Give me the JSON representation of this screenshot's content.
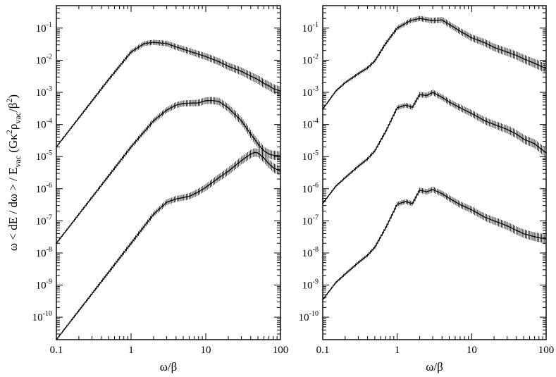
{
  "chart_data": [
    {
      "type": "line",
      "panel": "left",
      "xlabel": "ω/β",
      "ylabel": "ω < dE / dω > / E_vac (Gκ²ρ_vac/β²)",
      "xscale": "log",
      "yscale": "log",
      "xlim": [
        0.1,
        100
      ],
      "ylim": [
        2e-11,
        0.5
      ],
      "xticks": [
        0.1,
        1,
        10,
        100
      ],
      "xtick_labels": [
        "0.1",
        "1",
        "10",
        "100"
      ],
      "yticks": [
        1e-10,
        1e-09,
        1e-08,
        1e-07,
        1e-06,
        1e-05,
        0.0001,
        0.001,
        0.01,
        0.1
      ],
      "ytick_labels": [
        {
          "base": "10",
          "exp": "-10"
        },
        {
          "base": "10",
          "exp": "-9"
        },
        {
          "base": "10",
          "exp": "-8"
        },
        {
          "base": "10",
          "exp": "-7"
        },
        {
          "base": "10",
          "exp": "-6"
        },
        {
          "base": "10",
          "exp": "-5"
        },
        {
          "base": "10",
          "exp": "-4"
        },
        {
          "base": "10",
          "exp": "-3"
        },
        {
          "base": "10",
          "exp": "-2"
        },
        {
          "base": "10",
          "exp": "-1"
        }
      ],
      "series": [
        {
          "x": [
            0.1,
            0.2,
            0.5,
            1,
            1.5,
            2,
            3,
            4,
            5,
            7,
            10,
            15,
            20,
            30,
            40,
            50,
            60,
            70,
            80,
            100
          ],
          "y": [
            2e-05,
            0.00016,
            0.0025,
            0.018,
            0.033,
            0.036,
            0.033,
            0.026,
            0.022,
            0.017,
            0.013,
            0.009,
            0.0065,
            0.0045,
            0.0032,
            0.0025,
            0.0019,
            0.0016,
            0.0013,
            0.0011
          ]
        },
        {
          "x": [
            0.1,
            0.2,
            0.5,
            1,
            2,
            3,
            4,
            5,
            6,
            8,
            10,
            12,
            15,
            20,
            30,
            40,
            50,
            60,
            70,
            80,
            100
          ],
          "y": [
            2e-08,
            1.6e-07,
            2.5e-06,
            2e-05,
            0.00013,
            0.00028,
            0.0004,
            0.00045,
            0.00046,
            0.00047,
            0.00055,
            0.00056,
            0.00052,
            0.00033,
            0.00013,
            5e-05,
            2.5e-05,
            1.5e-05,
            1.2e-05,
            1.1e-05,
            1.05e-05
          ]
        },
        {
          "x": [
            0.1,
            0.2,
            0.5,
            1,
            2,
            3,
            4,
            5,
            6,
            8,
            10,
            15,
            20,
            30,
            40,
            45,
            50,
            60,
            70,
            80,
            100
          ],
          "y": [
            2e-11,
            1.6e-10,
            2.5e-09,
            2e-08,
            1.6e-07,
            3.8e-07,
            4.8e-07,
            5.3e-07,
            5.8e-07,
            8e-07,
            1.1e-06,
            2.2e-06,
            3.5e-06,
            7.5e-06,
            1.2e-05,
            1.35e-05,
            1.3e-05,
            9e-06,
            6e-06,
            4.5e-06,
            3.5e-06
          ]
        }
      ]
    },
    {
      "type": "line",
      "panel": "right",
      "xlabel": "ω/β",
      "xscale": "log",
      "yscale": "log",
      "xlim": [
        0.1,
        100
      ],
      "ylim": [
        2e-11,
        0.5
      ],
      "xticks": [
        0.1,
        1,
        10,
        100
      ],
      "xtick_labels": [
        "0.1",
        "1",
        "10",
        "100"
      ],
      "yticks": [
        1e-10,
        1e-09,
        1e-08,
        1e-07,
        1e-06,
        1e-05,
        0.0001,
        0.001,
        0.01,
        0.1
      ],
      "ytick_labels": [
        {
          "base": "10",
          "exp": "-10"
        },
        {
          "base": "10",
          "exp": "-9"
        },
        {
          "base": "10",
          "exp": "-8"
        },
        {
          "base": "10",
          "exp": "-7"
        },
        {
          "base": "10",
          "exp": "-6"
        },
        {
          "base": "10",
          "exp": "-5"
        },
        {
          "base": "10",
          "exp": "-4"
        },
        {
          "base": "10",
          "exp": "-3"
        },
        {
          "base": "10",
          "exp": "-2"
        },
        {
          "base": "10",
          "exp": "-1"
        }
      ],
      "series": [
        {
          "x": [
            0.1,
            0.15,
            0.2,
            0.3,
            0.4,
            0.5,
            0.7,
            1,
            1.5,
            2,
            3,
            4,
            5,
            7,
            10,
            15,
            20,
            30,
            40,
            50,
            70,
            100
          ],
          "y": [
            0.0003,
            0.0011,
            0.002,
            0.0038,
            0.0058,
            0.0095,
            0.033,
            0.1,
            0.17,
            0.2,
            0.17,
            0.18,
            0.13,
            0.08,
            0.05,
            0.035,
            0.025,
            0.018,
            0.014,
            0.011,
            0.008,
            0.0055
          ]
        },
        {
          "x": [
            0.1,
            0.15,
            0.2,
            0.3,
            0.4,
            0.5,
            0.7,
            1,
            1.3,
            1.6,
            2,
            2.5,
            3,
            4,
            5,
            7,
            10,
            15,
            20,
            30,
            40,
            50,
            70,
            100
          ],
          "y": [
            3.5e-07,
            1.2e-06,
            2.2e-06,
            5e-06,
            8.5e-06,
            1.5e-05,
            6e-05,
            0.00033,
            0.0004,
            0.00034,
            0.00085,
            0.0008,
            0.001,
            0.0007,
            0.0005,
            0.00033,
            0.00022,
            0.00013,
            0.0001,
            7e-05,
            5e-05,
            3.5e-05,
            2.5e-05,
            1.3e-05
          ]
        },
        {
          "x": [
            0.1,
            0.15,
            0.2,
            0.3,
            0.4,
            0.5,
            0.7,
            1,
            1.3,
            1.6,
            2,
            2.5,
            3,
            4,
            5,
            7,
            10,
            15,
            20,
            30,
            40,
            50,
            70,
            100
          ],
          "y": [
            3.5e-10,
            1.2e-09,
            2.2e-09,
            5e-09,
            8.5e-09,
            1.5e-08,
            6e-08,
            3.3e-07,
            4e-07,
            3.4e-07,
            9e-07,
            8e-07,
            9.5e-07,
            7e-07,
            5e-07,
            3.2e-07,
            2.2e-07,
            1.3e-07,
            1e-07,
            7e-08,
            5e-08,
            4e-08,
            3.2e-08,
            2.7e-08
          ]
        }
      ]
    }
  ]
}
